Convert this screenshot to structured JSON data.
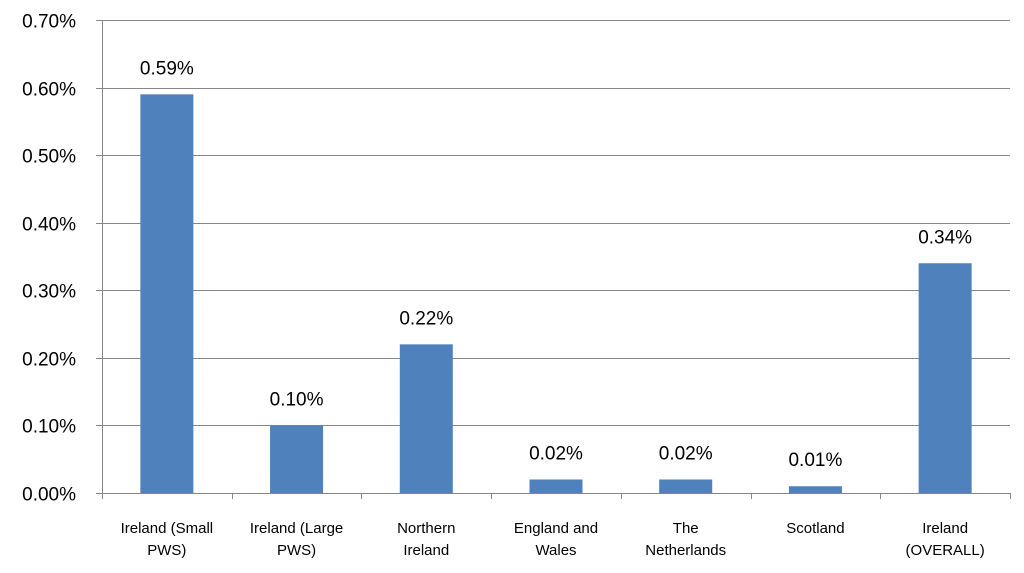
{
  "chart_data": {
    "type": "bar",
    "title": "",
    "xlabel": "",
    "ylabel": "",
    "categories": [
      [
        "Ireland (Small",
        "PWS)"
      ],
      [
        "Ireland (Large",
        "PWS)"
      ],
      [
        "Northern",
        "Ireland"
      ],
      [
        "England and",
        "Wales"
      ],
      [
        "The",
        "Netherlands"
      ],
      [
        "Scotland"
      ],
      [
        "Ireland",
        "(OVERALL)"
      ]
    ],
    "values": [
      0.59,
      0.1,
      0.22,
      0.02,
      0.02,
      0.01,
      0.34
    ],
    "data_labels": [
      "0.59%",
      "",
      "0.22%",
      "0.02%",
      "0.02%",
      "0.01%",
      "0.34%"
    ],
    "data_labels_shown": [
      "0.59%",
      "0.10%",
      "0.22%",
      "0.02%",
      "0.02%",
      "0.01%",
      "0.34%"
    ],
    "ylim": [
      0,
      0.7
    ],
    "yticks": [
      0,
      0.1,
      0.2,
      0.3,
      0.4,
      0.5,
      0.6,
      0.7
    ],
    "ytick_labels": [
      "0.00%",
      "0.10%",
      "0.20%",
      "0.30%",
      "0.40%",
      "0.50%",
      "0.60%",
      "0.70%"
    ],
    "grid": true,
    "legend": "none",
    "colors": {
      "bar": "#4F81BD",
      "grid": "#868686",
      "axis": "#868686"
    }
  }
}
